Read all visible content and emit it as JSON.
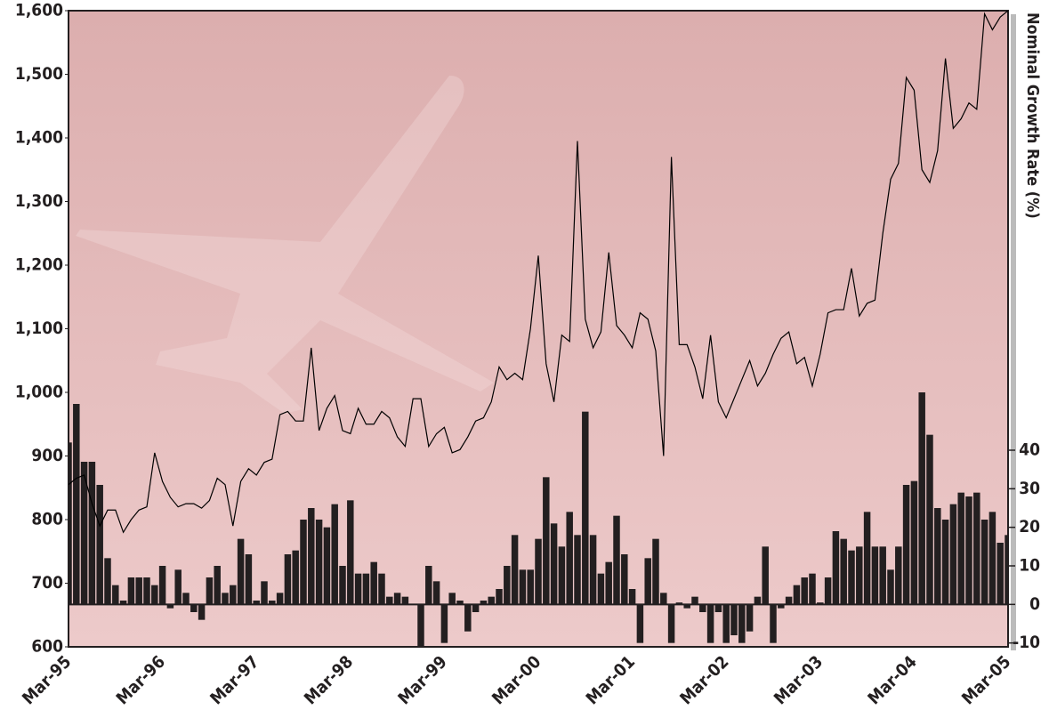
{
  "chart_data": {
    "type": "bar-line",
    "y2label": "Nominal Growth Rate (%)",
    "categories": [
      "Mar-95",
      null,
      null,
      null,
      null,
      null,
      null,
      null,
      null,
      null,
      null,
      null,
      "Mar-96",
      null,
      null,
      null,
      null,
      null,
      null,
      null,
      null,
      null,
      null,
      null,
      "Mar-97",
      null,
      null,
      null,
      null,
      null,
      null,
      null,
      null,
      null,
      null,
      null,
      "Mar-98",
      null,
      null,
      null,
      null,
      null,
      null,
      null,
      null,
      null,
      null,
      null,
      "Mar-99",
      null,
      null,
      null,
      null,
      null,
      null,
      null,
      null,
      null,
      null,
      null,
      "Mar-00",
      null,
      null,
      null,
      null,
      null,
      null,
      null,
      null,
      null,
      null,
      null,
      "Mar-01",
      null,
      null,
      null,
      null,
      null,
      null,
      null,
      null,
      null,
      null,
      null,
      "Mar-02",
      null,
      null,
      null,
      null,
      null,
      null,
      null,
      null,
      null,
      null,
      null,
      "Mar-03",
      null,
      null,
      null,
      null,
      null,
      null,
      null,
      null,
      null,
      null,
      null,
      "Mar-04",
      null,
      null,
      null,
      null,
      null,
      null,
      null,
      null,
      null,
      null,
      null,
      "Mar-05"
    ],
    "series": [
      {
        "type": "bar",
        "axis": "y2",
        "color": "#231f20",
        "values": [
          42,
          52,
          37,
          37,
          31,
          12,
          5,
          1,
          7,
          7,
          7,
          5,
          10,
          -1,
          9,
          3,
          -2,
          -4,
          7,
          10,
          3,
          5,
          17,
          13,
          1,
          6,
          1,
          3,
          13,
          14,
          22,
          25,
          22,
          20,
          26,
          10,
          27,
          8,
          8,
          11,
          8,
          2,
          3,
          2,
          0,
          -12,
          10,
          6,
          -10,
          3,
          1,
          -7,
          -2,
          1,
          2,
          4,
          10,
          18,
          9,
          9,
          17,
          33,
          21,
          15,
          24,
          18,
          50,
          18,
          8,
          11,
          23,
          13,
          4,
          -10,
          12,
          17,
          3,
          -10,
          0.5,
          -1,
          2,
          -2,
          -10,
          -2,
          -10,
          -8,
          -10,
          -7,
          2,
          15,
          -10,
          -1,
          2,
          5,
          7,
          8,
          0.5,
          7,
          19,
          17,
          14,
          15,
          24,
          15,
          15,
          9,
          15,
          31,
          32,
          55,
          44,
          25,
          22,
          26,
          29,
          28,
          29,
          22,
          24,
          16,
          18
        ]
      },
      {
        "type": "line",
        "axis": "y",
        "color": "#000000",
        "values": [
          855,
          865,
          870,
          825,
          790,
          815,
          815,
          780,
          800,
          815,
          820,
          905,
          860,
          835,
          820,
          825,
          825,
          818,
          830,
          865,
          855,
          790,
          860,
          880,
          870,
          890,
          895,
          965,
          970,
          955,
          955,
          1070,
          940,
          975,
          995,
          940,
          935,
          975,
          950,
          950,
          970,
          960,
          930,
          915,
          990,
          990,
          915,
          935,
          945,
          905,
          910,
          930,
          955,
          960,
          985,
          1040,
          1020,
          1030,
          1020,
          1100,
          1215,
          1045,
          985,
          1090,
          1080,
          1395,
          1115,
          1070,
          1095,
          1220,
          1105,
          1090,
          1070,
          1125,
          1115,
          1065,
          900,
          1370,
          1075,
          1075,
          1040,
          990,
          1090,
          985,
          960,
          990,
          1020,
          1050,
          1010,
          1030,
          1060,
          1085,
          1095,
          1045,
          1055,
          1010,
          1060,
          1125,
          1130,
          1130,
          1195,
          1120,
          1140,
          1145,
          1250,
          1335,
          1360,
          1495,
          1475,
          1350,
          1330,
          1380,
          1525,
          1415,
          1430,
          1455,
          1445,
          1595,
          1570,
          1590,
          1600
        ]
      }
    ],
    "ylim": [
      600,
      1600
    ],
    "yticks": [
      {
        "value": 600,
        "label": "600"
      },
      {
        "value": 700,
        "label": "700"
      },
      {
        "value": 800,
        "label": "800"
      },
      {
        "value": 900,
        "label": "900"
      },
      {
        "value": 1000,
        "label": "1,000"
      },
      {
        "value": 1100,
        "label": "1,100"
      },
      {
        "value": 1200,
        "label": "1,200"
      },
      {
        "value": 1300,
        "label": "1,300"
      },
      {
        "value": 1400,
        "label": "1,400"
      },
      {
        "value": 1500,
        "label": "1,500"
      },
      {
        "value": 1600,
        "label": "1,600"
      }
    ],
    "y2lim": [
      -11,
      154
    ],
    "y2ticks": [
      -10,
      0,
      10,
      20,
      30,
      40
    ],
    "grid": false
  }
}
